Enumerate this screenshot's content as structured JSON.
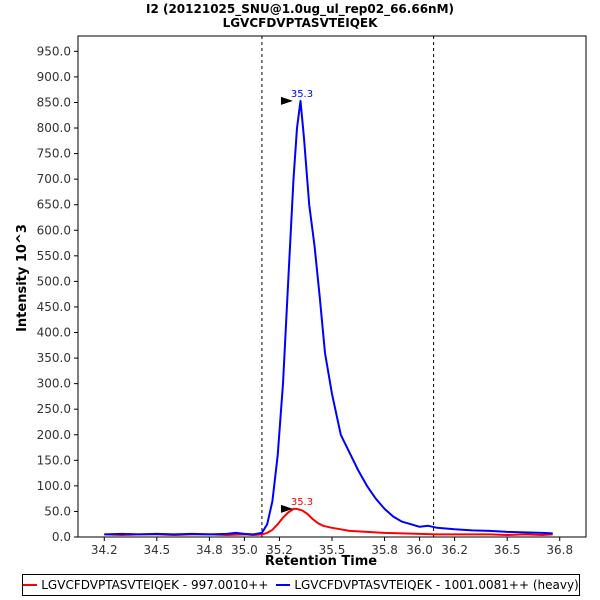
{
  "header": {
    "title": "I2 (20121025_SNU@1.0ug_ul_rep02_66.66nM)",
    "subtitle": "LGVCFDVPTASVTEIQEK"
  },
  "chart_data": {
    "type": "line",
    "xlabel": "Retention Time",
    "ylabel": "Intensity 10^3",
    "xlim": [
      34.05,
      36.95
    ],
    "ylim": [
      0,
      980
    ],
    "x_ticks": [
      "34.2",
      "34.5",
      "34.8",
      "35.0",
      "35.2",
      "35.5",
      "35.8",
      "36.0",
      "36.2",
      "36.5",
      "36.8"
    ],
    "x_tick_values": [
      34.2,
      34.5,
      34.8,
      35.0,
      35.2,
      35.5,
      35.8,
      36.0,
      36.2,
      36.5,
      36.8
    ],
    "y_ticks": [
      "0.0",
      "50.0",
      "100.0",
      "150.0",
      "200.0",
      "250.0",
      "300.0",
      "350.0",
      "400.0",
      "450.0",
      "500.0",
      "550.0",
      "600.0",
      "650.0",
      "700.0",
      "750.0",
      "800.0",
      "850.0",
      "900.0",
      "950.0"
    ],
    "y_tick_values": [
      0,
      50,
      100,
      150,
      200,
      250,
      300,
      350,
      400,
      450,
      500,
      550,
      600,
      650,
      700,
      750,
      800,
      850,
      900,
      950
    ],
    "integration_bounds": [
      35.1,
      36.08
    ],
    "grid": false,
    "legend_position": "bottom",
    "series": [
      {
        "name": "LGVCFDVPTASVTEIQEK - 997.0010++",
        "color": "#ff0000",
        "peak_label": "35.3",
        "peak_x": 35.3,
        "peak_y": 55,
        "x": [
          34.2,
          34.3,
          34.4,
          34.5,
          34.6,
          34.7,
          34.8,
          34.9,
          35.0,
          35.05,
          35.1,
          35.13,
          35.16,
          35.19,
          35.22,
          35.25,
          35.28,
          35.3,
          35.33,
          35.36,
          35.39,
          35.42,
          35.45,
          35.5,
          35.55,
          35.6,
          35.7,
          35.8,
          35.9,
          36.0,
          36.1,
          36.2,
          36.3,
          36.4,
          36.5,
          36.6,
          36.7,
          36.76
        ],
        "y": [
          5,
          4,
          5,
          5,
          4,
          5,
          5,
          4,
          5,
          4,
          5,
          8,
          14,
          25,
          38,
          48,
          55,
          55,
          52,
          45,
          35,
          27,
          22,
          18,
          15,
          12,
          10,
          8,
          7,
          6,
          5,
          5,
          5,
          5,
          4,
          5,
          4,
          5
        ]
      },
      {
        "name": "LGVCFDVPTASVTEIQEK - 1001.0081++ (heavy)",
        "color": "#0000ff",
        "peak_label": "35.3",
        "peak_x": 35.3,
        "peak_y": 853,
        "x": [
          34.2,
          34.3,
          34.4,
          34.5,
          34.6,
          34.7,
          34.8,
          34.9,
          34.95,
          35.0,
          35.05,
          35.1,
          35.13,
          35.16,
          35.19,
          35.22,
          35.25,
          35.28,
          35.3,
          35.32,
          35.34,
          35.37,
          35.4,
          35.43,
          35.46,
          35.5,
          35.55,
          35.6,
          35.65,
          35.7,
          35.75,
          35.8,
          35.85,
          35.9,
          35.95,
          36.0,
          36.05,
          36.1,
          36.2,
          36.3,
          36.4,
          36.5,
          36.6,
          36.7,
          36.76
        ],
        "y": [
          5,
          6,
          5,
          6,
          5,
          6,
          5,
          6,
          8,
          6,
          5,
          8,
          25,
          70,
          160,
          300,
          500,
          700,
          800,
          853,
          780,
          650,
          570,
          470,
          360,
          280,
          200,
          165,
          130,
          100,
          75,
          55,
          40,
          30,
          25,
          20,
          22,
          18,
          15,
          13,
          12,
          10,
          9,
          8,
          7
        ]
      }
    ]
  },
  "colors": {
    "red_series": "#ff0000",
    "blue_series": "#0000ff",
    "axis": "#000000"
  }
}
